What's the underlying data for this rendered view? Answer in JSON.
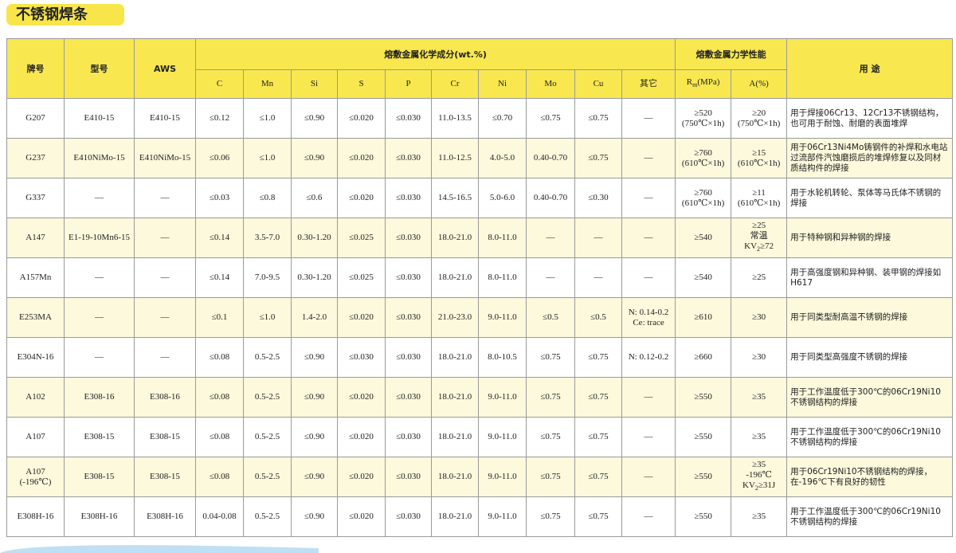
{
  "title": "不锈钢焊条",
  "table": {
    "headers": {
      "brand": "牌号",
      "model": "型号",
      "aws": "AWS",
      "chem": "熔敷金属化学成分(wt.%)",
      "mech": "熔敷金属力学性能",
      "use": "用 途",
      "chem_cols": [
        "C",
        "Mn",
        "Si",
        "S",
        "P",
        "Cr",
        "Ni",
        "Mo",
        "Cu",
        "其它"
      ],
      "rm": [
        [
          "R",
          {
            "sub": "m"
          },
          "(MPa)"
        ]
      ],
      "a": "A(%)"
    },
    "rows": [
      [
        "G207",
        "E410-15",
        "E410-15",
        "≤0.12",
        "≤1.0",
        "≤0.90",
        "≤0.020",
        "≤0.030",
        "11.0-13.5",
        "≤0.70",
        "≤0.75",
        "≤0.75",
        "—",
        [
          "≥520",
          "(750℃×1h)"
        ],
        [
          "≥20",
          "(750℃×1h)"
        ],
        "用于焊接06Cr13、12Cr13不锈钢结构，也可用于耐蚀、耐磨的表面堆焊"
      ],
      [
        "G237",
        "E410NiMo-15",
        "E410NiMo-15",
        "≤0.06",
        "≤1.0",
        "≤0.90",
        "≤0.020",
        "≤0.030",
        "11.0-12.5",
        "4.0-5.0",
        "0.40-0.70",
        "≤0.75",
        "—",
        [
          "≥760",
          "(610℃×1h)"
        ],
        [
          "≥15",
          "(610℃×1h)"
        ],
        "用于06Cr13Ni4Mo铸钢件的补焊和水电站过流部件汽蚀磨损后的堆焊修复以及同材质结构件的焊接"
      ],
      [
        "G337",
        "—",
        "—",
        "≤0.03",
        "≤0.8",
        "≤0.6",
        "≤0.020",
        "≤0.030",
        "14.5-16.5",
        "5.0-6.0",
        "0.40-0.70",
        "≤0.30",
        "—",
        [
          "≥760",
          "(610℃×1h)"
        ],
        [
          "≥11",
          "(610℃×1h)"
        ],
        "用于水轮机转轮、泵体等马氏体不锈钢的焊接"
      ],
      [
        "A147",
        "E1-19-10Mn6-15",
        "—",
        "≤0.14",
        "3.5-7.0",
        "0.30-1.20",
        "≤0.025",
        "≤0.030",
        "18.0-21.0",
        "8.0-11.0",
        "—",
        "—",
        "—",
        "≥540",
        [
          "≥25",
          "常温",
          [
            "KV",
            {
              "sub": "2"
            },
            "≥72"
          ]
        ],
        "用于特种钢和异种钢的焊接"
      ],
      [
        "A157Mn",
        "—",
        "—",
        "≤0.14",
        "7.0-9.5",
        "0.30-1.20",
        "≤0.025",
        "≤0.030",
        "18.0-21.0",
        "8.0-11.0",
        "—",
        "—",
        "—",
        "≥540",
        "≥25",
        "用于高强度钢和异种钢、装甲钢的焊接如H617"
      ],
      [
        "E253MA",
        "—",
        "—",
        "≤0.1",
        "≤1.0",
        "1.4-2.0",
        "≤0.020",
        "≤0.030",
        "21.0-23.0",
        "9.0-11.0",
        "≤0.5",
        "≤0.5",
        [
          "N: 0.14-0.2",
          "Ce: trace"
        ],
        "≥610",
        "≥30",
        "用于同类型耐高温不锈钢的焊接"
      ],
      [
        "E304N-16",
        "—",
        "—",
        "≤0.08",
        "0.5-2.5",
        "≤0.90",
        "≤0.030",
        "≤0.030",
        "18.0-21.0",
        "8.0-10.5",
        "≤0.75",
        "≤0.75",
        "N: 0.12-0.2",
        "≥660",
        "≥30",
        "用于同类型高强度不锈钢的焊接"
      ],
      [
        "A102",
        "E308-16",
        "E308-16",
        "≤0.08",
        "0.5-2.5",
        "≤0.90",
        "≤0.020",
        "≤0.030",
        "18.0-21.0",
        "9.0-11.0",
        "≤0.75",
        "≤0.75",
        "—",
        "≥550",
        "≥35",
        "用于工作温度低于300℃的06Cr19Ni10不锈钢结构的焊接"
      ],
      [
        "A107",
        "E308-15",
        "E308-15",
        "≤0.08",
        "0.5-2.5",
        "≤0.90",
        "≤0.020",
        "≤0.030",
        "18.0-21.0",
        "9.0-11.0",
        "≤0.75",
        "≤0.75",
        "—",
        "≥550",
        "≥35",
        "用于工作温度低于300℃的06Cr19Ni10不锈钢结构的焊接"
      ],
      [
        [
          "A107",
          "(-196℃)"
        ],
        "E308-15",
        "E308-15",
        "≤0.08",
        "0.5-2.5",
        "≤0.90",
        "≤0.020",
        "≤0.030",
        "18.0-21.0",
        "9.0-11.0",
        "≤0.75",
        "≤0.75",
        "—",
        "≥550",
        [
          "≥35",
          "-196℃",
          [
            "KV",
            {
              "sub": "2"
            },
            "≥31J"
          ]
        ],
        "用于06Cr19Ni10不锈钢结构的焊接，在-196℃下有良好的韧性"
      ],
      [
        "E308H-16",
        "E308H-16",
        "E308H-16",
        "0.04-0.08",
        "0.5-2.5",
        "≤0.90",
        "≤0.020",
        "≤0.030",
        "18.0-21.0",
        "9.0-11.0",
        "≤0.75",
        "≤0.75",
        "—",
        "≥550",
        "≥35",
        "用于工作温度低于300℃的06Cr19Ni10不锈钢结构的焊接"
      ]
    ]
  }
}
